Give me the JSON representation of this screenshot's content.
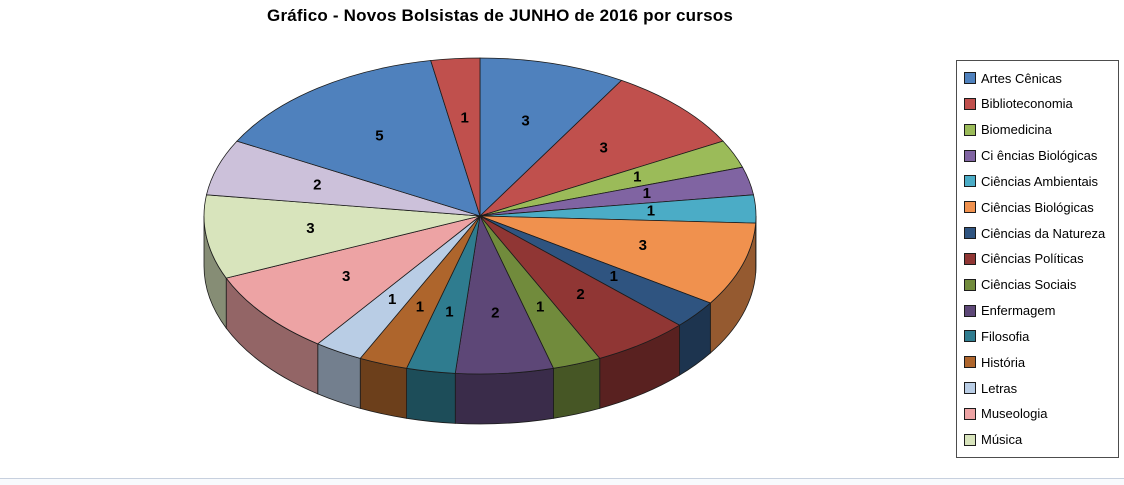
{
  "chart_data": {
    "type": "pie",
    "style": "3d",
    "title": "Gráfico - Novos Bolsistas de JUNHO de 2016 por cursos",
    "legend_position": "right",
    "direction": "clockwise",
    "start_angle_deg": 0,
    "total": 35,
    "slices": [
      {
        "label": "Artes Cênicas",
        "value": 3,
        "color": "#4F81BD",
        "in_legend": true
      },
      {
        "label": "Biblioteconomia",
        "value": 3,
        "color": "#C0504D",
        "in_legend": true
      },
      {
        "label": "Biomedicina",
        "value": 1,
        "color": "#9BBB59",
        "in_legend": true
      },
      {
        "label": "Ci ências Biológicas",
        "value": 1,
        "color": "#8064A2",
        "in_legend": true
      },
      {
        "label": "Ciências Ambientais",
        "value": 1,
        "color": "#4BACC6",
        "in_legend": true
      },
      {
        "label": "Ciências Biológicas",
        "value": 3,
        "color": "#F0914E",
        "in_legend": true
      },
      {
        "label": "Ciências da Natureza",
        "value": 1,
        "color": "#2F5480",
        "in_legend": true
      },
      {
        "label": "Ciências Políticas",
        "value": 2,
        "color": "#903634",
        "in_legend": true
      },
      {
        "label": "Ciências Sociais",
        "value": 1,
        "color": "#718B3C",
        "in_legend": true
      },
      {
        "label": "Enfermagem",
        "value": 2,
        "color": "#5D4777",
        "in_legend": true
      },
      {
        "label": "Filosofia",
        "value": 1,
        "color": "#2F7C8F",
        "in_legend": true
      },
      {
        "label": "História",
        "value": 1,
        "color": "#AE652C",
        "in_legend": true
      },
      {
        "label": "Letras",
        "value": 1,
        "color": "#B9CDE5",
        "in_legend": true
      },
      {
        "label": "Museologia",
        "value": 3,
        "color": "#EDA3A4",
        "in_legend": true
      },
      {
        "label": "Música",
        "value": 3,
        "color": "#D8E4BC",
        "in_legend": true
      },
      {
        "label": "",
        "value": 2,
        "color": "#CCC1DA",
        "in_legend": false
      },
      {
        "label": "",
        "value": 5,
        "color": "#4F81BD",
        "in_legend": false
      },
      {
        "label": "",
        "value": 1,
        "color": "#C0504D",
        "in_legend": false
      }
    ]
  }
}
